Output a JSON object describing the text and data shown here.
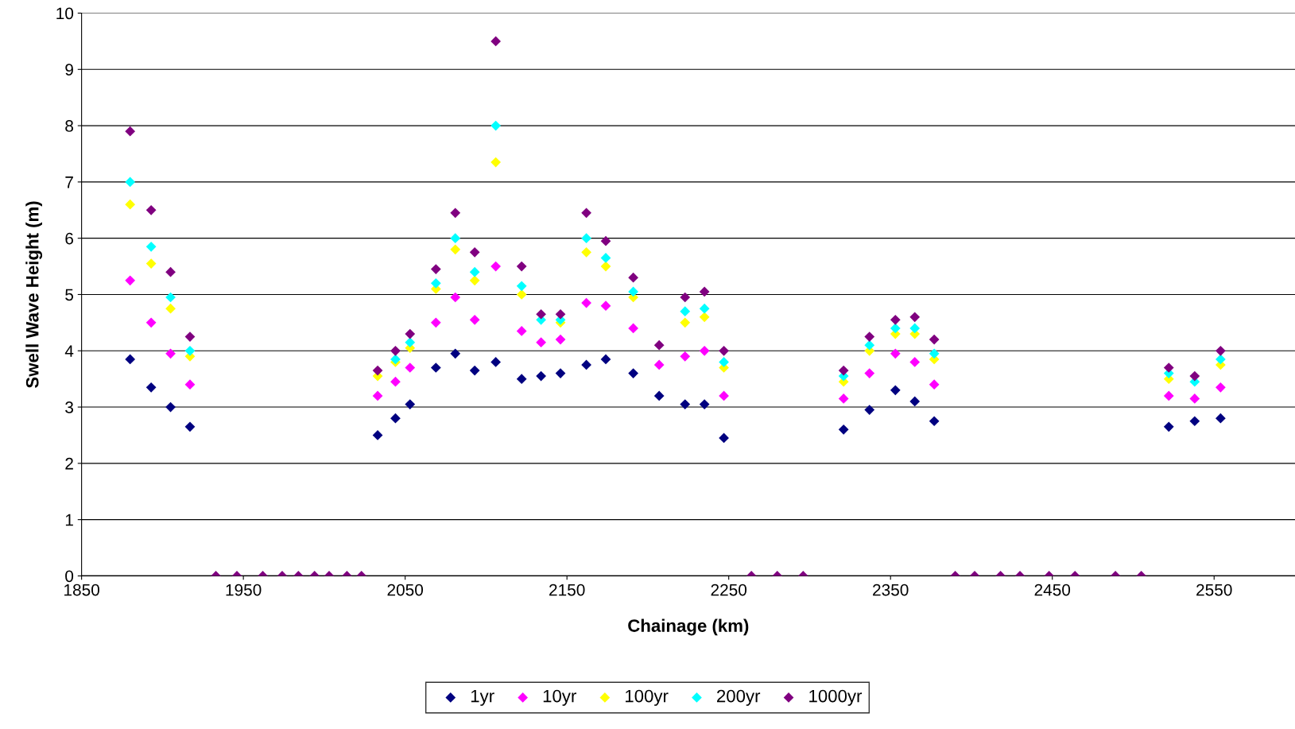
{
  "chart_data": {
    "type": "scatter",
    "xlabel": "Chainage (km)",
    "ylabel": "Swell Wave Height (m)",
    "x": [
      1880,
      1893,
      1905,
      1917,
      1933,
      1946,
      1962,
      1974,
      1984,
      1994,
      2003,
      2014,
      2023,
      2033,
      2044,
      2053,
      2069,
      2081,
      2093,
      2106,
      2122,
      2134,
      2146,
      2162,
      2174,
      2191,
      2207,
      2223,
      2235,
      2247,
      2264,
      2280,
      2296,
      2321,
      2337,
      2353,
      2365,
      2377,
      2390,
      2402,
      2418,
      2430,
      2448,
      2464,
      2489,
      2505,
      2522,
      2538,
      2554
    ],
    "series": [
      {
        "name": "1yr",
        "color": "#000080",
        "values": [
          3.85,
          3.35,
          3.0,
          2.65,
          null,
          null,
          null,
          null,
          null,
          null,
          null,
          null,
          null,
          2.5,
          2.8,
          3.05,
          3.7,
          3.95,
          3.65,
          3.8,
          3.5,
          3.55,
          3.6,
          3.75,
          3.85,
          3.6,
          3.2,
          3.05,
          3.05,
          2.45,
          null,
          null,
          null,
          2.6,
          2.95,
          3.3,
          3.1,
          2.75,
          null,
          null,
          null,
          null,
          null,
          null,
          null,
          null,
          2.65,
          2.75,
          2.8
        ]
      },
      {
        "name": "10yr",
        "color": "#ff00ff",
        "values": [
          5.25,
          4.5,
          3.95,
          3.4,
          null,
          null,
          null,
          null,
          null,
          null,
          null,
          null,
          null,
          3.2,
          3.45,
          3.7,
          4.5,
          4.95,
          4.55,
          5.5,
          4.35,
          4.15,
          4.2,
          4.85,
          4.8,
          4.4,
          3.75,
          3.9,
          4.0,
          3.2,
          null,
          null,
          null,
          3.15,
          3.6,
          3.95,
          3.8,
          3.4,
          null,
          null,
          null,
          null,
          null,
          null,
          null,
          null,
          3.2,
          3.15,
          3.35
        ]
      },
      {
        "name": "100yr",
        "color": "#ffff00",
        "values": [
          6.6,
          5.55,
          4.75,
          3.9,
          null,
          null,
          null,
          null,
          null,
          null,
          null,
          null,
          null,
          3.55,
          3.8,
          4.05,
          5.1,
          5.8,
          5.25,
          7.35,
          5.0,
          null,
          4.5,
          5.75,
          5.5,
          4.95,
          null,
          4.5,
          4.6,
          3.7,
          null,
          null,
          null,
          3.45,
          4.0,
          4.3,
          4.3,
          3.85,
          null,
          null,
          null,
          null,
          null,
          null,
          null,
          null,
          3.5,
          null,
          3.75
        ]
      },
      {
        "name": "200yr",
        "color": "#00ffff",
        "values": [
          7.0,
          5.85,
          4.95,
          4.0,
          null,
          null,
          null,
          null,
          null,
          null,
          null,
          null,
          null,
          null,
          3.85,
          4.15,
          5.2,
          6.0,
          5.4,
          8.0,
          5.15,
          4.55,
          4.55,
          6.0,
          5.65,
          5.05,
          null,
          4.7,
          4.75,
          3.8,
          null,
          null,
          null,
          3.55,
          4.1,
          4.4,
          4.4,
          3.95,
          null,
          null,
          null,
          null,
          null,
          null,
          null,
          null,
          3.6,
          3.45,
          3.85
        ]
      },
      {
        "name": "1000yr",
        "color": "#800080",
        "values": [
          7.9,
          6.5,
          5.4,
          4.25,
          0,
          0,
          0,
          0,
          0,
          0,
          0,
          0,
          0,
          3.65,
          4.0,
          4.3,
          5.45,
          6.45,
          5.75,
          9.5,
          5.5,
          4.65,
          4.65,
          6.45,
          5.95,
          5.3,
          4.1,
          4.95,
          5.05,
          4.0,
          0,
          0,
          0,
          3.65,
          4.25,
          4.55,
          4.6,
          4.2,
          0,
          0,
          0,
          0,
          0,
          0,
          0,
          0,
          3.7,
          3.55,
          4.0
        ]
      }
    ],
    "xlim": [
      1850,
      2600
    ],
    "xticks": [
      1850,
      1950,
      2050,
      2150,
      2250,
      2350,
      2450,
      2550
    ],
    "ylim": [
      0,
      10
    ],
    "yticks": [
      0,
      1,
      2,
      3,
      4,
      5,
      6,
      7,
      8,
      9,
      10
    ],
    "grid": "y",
    "legend": "bottom",
    "marker": "diamond"
  }
}
